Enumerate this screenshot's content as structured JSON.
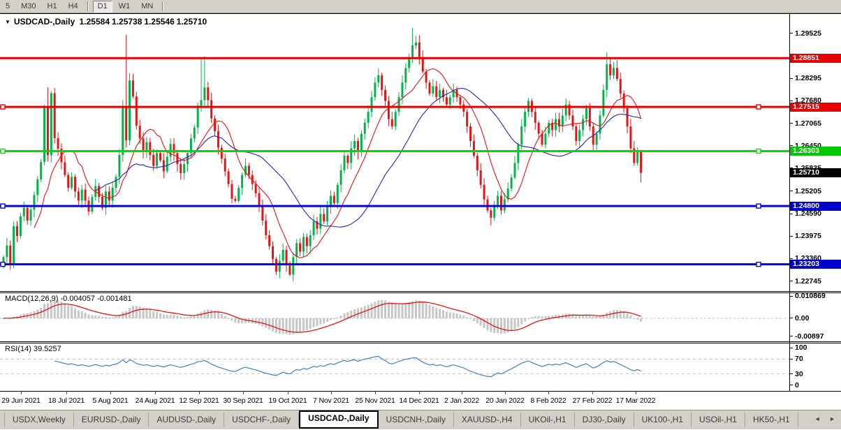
{
  "colors": {
    "candle_up": "#00b44a",
    "candle_down": "#e81414",
    "hline_red": "#e60000",
    "hline_green": "#00dc00",
    "hline_blue": "#0000e0",
    "badge_red": "#e60000",
    "badge_green": "#00c800",
    "badge_blue": "#0000cc",
    "badge_black": "#000000",
    "ma_fast": "#ee1010",
    "ma_slow": "#2424b4",
    "macd_bar": "#c6c6c6",
    "macd_signal": "#f00000",
    "rsi_line": "#3b82c4",
    "grid_dash": "#bdbdbd",
    "toolbar_bg": "#d4d0c8"
  },
  "toolbar": {
    "timeframes": [
      "5",
      "M30",
      "H1",
      "H4",
      "D1",
      "W1",
      "MN"
    ],
    "active": "D1"
  },
  "chart_title": {
    "dropdown_arrow": "▼",
    "symbol_period": "USDCAD-,Daily",
    "open": "1.25584",
    "high": "1.25738",
    "low": "1.25546",
    "close": "1.25710"
  },
  "price_axis": {
    "min": 1.2247,
    "max": 1.3006,
    "ticks": [
      "1.29525",
      "1.28295",
      "1.27680",
      "1.27065",
      "1.26450",
      "1.25835",
      "1.25205",
      "1.24590",
      "1.23975",
      "1.23360",
      "1.22745"
    ]
  },
  "hlines": [
    {
      "price": 1.28851,
      "label": "1.28851",
      "line_color": "#e60000",
      "badge_color": "#e60000",
      "markers": false
    },
    {
      "price": 1.27515,
      "label": "1.27515",
      "line_color": "#e60000",
      "badge_color": "#e60000",
      "markers": true
    },
    {
      "price": 1.26303,
      "label": "1.26303",
      "line_color": "#00dc00",
      "badge_color": "#00c800",
      "markers": true
    },
    {
      "price": 1.248,
      "label": "1.24800",
      "line_color": "#0000e0",
      "badge_color": "#0000cc",
      "markers": true
    },
    {
      "price": 1.23203,
      "label": "1.23203",
      "line_color": "#0000e0",
      "badge_color": "#0000cc",
      "markers": true
    }
  ],
  "current_price": {
    "label": "1.25710",
    "price": 1.2571,
    "badge_color": "#000000"
  },
  "chart_data": {
    "type": "candlestick",
    "symbol": "USDCAD",
    "period": "Daily",
    "ohlc_display": {
      "open": 1.25584,
      "high": 1.25738,
      "low": 1.25546,
      "close": 1.2571
    },
    "first_open": 1.2315,
    "seed": 7,
    "closes": [
      1.234,
      1.2372,
      1.2318,
      1.2425,
      1.2398,
      1.2452,
      1.2475,
      1.244,
      1.247,
      1.251,
      1.2553,
      1.2601,
      1.275,
      1.2619,
      1.2789,
      1.2666,
      1.2637,
      1.26,
      1.2565,
      1.253,
      1.256,
      1.252,
      1.2495,
      1.2525,
      1.2495,
      1.2465,
      1.2505,
      1.2535,
      1.2505,
      1.2475,
      1.252,
      1.2495,
      1.253,
      1.256,
      1.262,
      1.275,
      1.266,
      1.2824,
      1.278,
      1.27,
      1.2665,
      1.263,
      1.2655,
      1.262,
      1.259,
      1.2625,
      1.2605,
      1.2575,
      1.2615,
      1.265,
      1.2625,
      1.2595,
      1.257,
      1.2595,
      1.2625,
      1.2665,
      1.2695,
      1.2755,
      1.277,
      1.2805,
      1.277,
      1.272,
      1.2685,
      1.264,
      1.261,
      1.2575,
      1.254,
      1.25,
      1.2494,
      1.253,
      1.2565,
      1.259,
      1.2565,
      1.254,
      1.2515,
      1.248,
      1.244,
      1.24,
      1.237,
      1.2335,
      1.23,
      1.233,
      1.236,
      1.232,
      1.2292,
      1.234,
      1.2378,
      1.2355,
      1.2395,
      1.237,
      1.24,
      1.2438,
      1.2418,
      1.2458,
      1.2438,
      1.2478,
      1.2508,
      1.2488,
      1.2538,
      1.2578,
      1.2618,
      1.2598,
      1.2638,
      1.2658,
      1.2628,
      1.2678,
      1.2708,
      1.2738,
      1.2778,
      1.2818,
      1.2838,
      1.2798,
      1.2768,
      1.2718,
      1.2698,
      1.2738,
      1.2778,
      1.2818,
      1.2858,
      1.2888,
      1.292,
      1.2928,
      1.2888,
      1.2848,
      1.2818,
      1.2788,
      1.2808,
      1.2778,
      1.2798,
      1.2778,
      1.2758,
      1.2778,
      1.2798,
      1.2778,
      1.2758,
      1.2738,
      1.2698,
      1.2658,
      1.2618,
      1.2578,
      1.2538,
      1.2498,
      1.2468,
      1.2448,
      1.2478,
      1.2508,
      1.2468,
      1.2498,
      1.2528,
      1.2558,
      1.2598,
      1.2648,
      1.2698,
      1.2738,
      1.2768,
      1.2738,
      1.2708,
      1.2678,
      1.2648,
      1.2678,
      1.2708,
      1.2688,
      1.2718,
      1.2698,
      1.2728,
      1.2758,
      1.2728,
      1.2698,
      1.2658,
      1.2688,
      1.2718,
      1.2748,
      1.2698,
      1.2648,
      1.2678,
      1.2728,
      1.2798,
      1.2868,
      1.2838,
      1.2858,
      1.2828,
      1.2788,
      1.2748,
      1.2698,
      1.2638,
      1.2598,
      1.2628,
      1.2571
    ],
    "wick_overrides": {
      "13": {
        "h": 1.2805
      },
      "36": {
        "h": 1.2949,
        "l": 1.264
      },
      "58": {
        "h": 1.2888
      },
      "59": {
        "h": 1.289
      },
      "84": {
        "l": 1.2288
      },
      "120": {
        "h": 1.2968
      },
      "177": {
        "h": 1.2901
      },
      "187": {
        "l": 1.2545
      }
    },
    "moving_averages": [
      {
        "period": 10,
        "color": "#ee1010"
      },
      {
        "period": 28,
        "color": "#2424b4"
      }
    ],
    "x_dates": [
      "29 Jun 2021",
      "18 Jul 2021",
      "5 Aug 2021",
      "24 Aug 2021",
      "12 Sep 2021",
      "30 Sep 2021",
      "19 Oct 2021",
      "7 Nov 2021",
      "25 Nov 2021",
      "14 Dec 2021",
      "2 Jan 2022",
      "20 Jan 2022",
      "8 Feb 2022",
      "27 Feb 2022",
      "17 Mar 2022"
    ],
    "date_centers": [
      30,
      95,
      158,
      222,
      285,
      348,
      412,
      474,
      537,
      600,
      661,
      723,
      785,
      848,
      910
    ],
    "macd": {
      "label": "MACD(12,26,9)",
      "fast": 12,
      "slow": 26,
      "signal": 9,
      "value_main": "-0.004057",
      "value_signal": "-0.001481",
      "axis_ticks": [
        {
          "v": 0.010869,
          "label": "0.010869"
        },
        {
          "v": 0,
          "label": "0.00"
        },
        {
          "v": -0.00897,
          "label": "-0.00897"
        }
      ],
      "range_top": 0.0124,
      "range_bottom": -0.0114
    },
    "rsi": {
      "label": "RSI(14)",
      "period": 14,
      "value": "39.5257",
      "axis_ticks": [
        {
          "v": 100,
          "label": "100"
        },
        {
          "v": 70,
          "label": "70"
        },
        {
          "v": 30,
          "label": "30"
        },
        {
          "v": 0,
          "label": "0"
        }
      ],
      "levels": [
        70,
        30
      ],
      "range_top": 112,
      "range_bottom": -16
    }
  },
  "tab_bar": {
    "tabs": [
      "USDX,Weekly",
      "EURUSD-,Daily",
      "AUDUSD-,Daily",
      "USDCHF-,Daily",
      "USDCAD-,Daily",
      "USDCNH-,Daily",
      "XAUUSD-,H4",
      "UKOil-,H1",
      "DJ30-,Daily",
      "UK100-,H1",
      "USOil-,H1",
      "HK50-,H1"
    ],
    "active": "USDCAD-,Daily",
    "scroll_left": "◄",
    "scroll_right": "►"
  }
}
